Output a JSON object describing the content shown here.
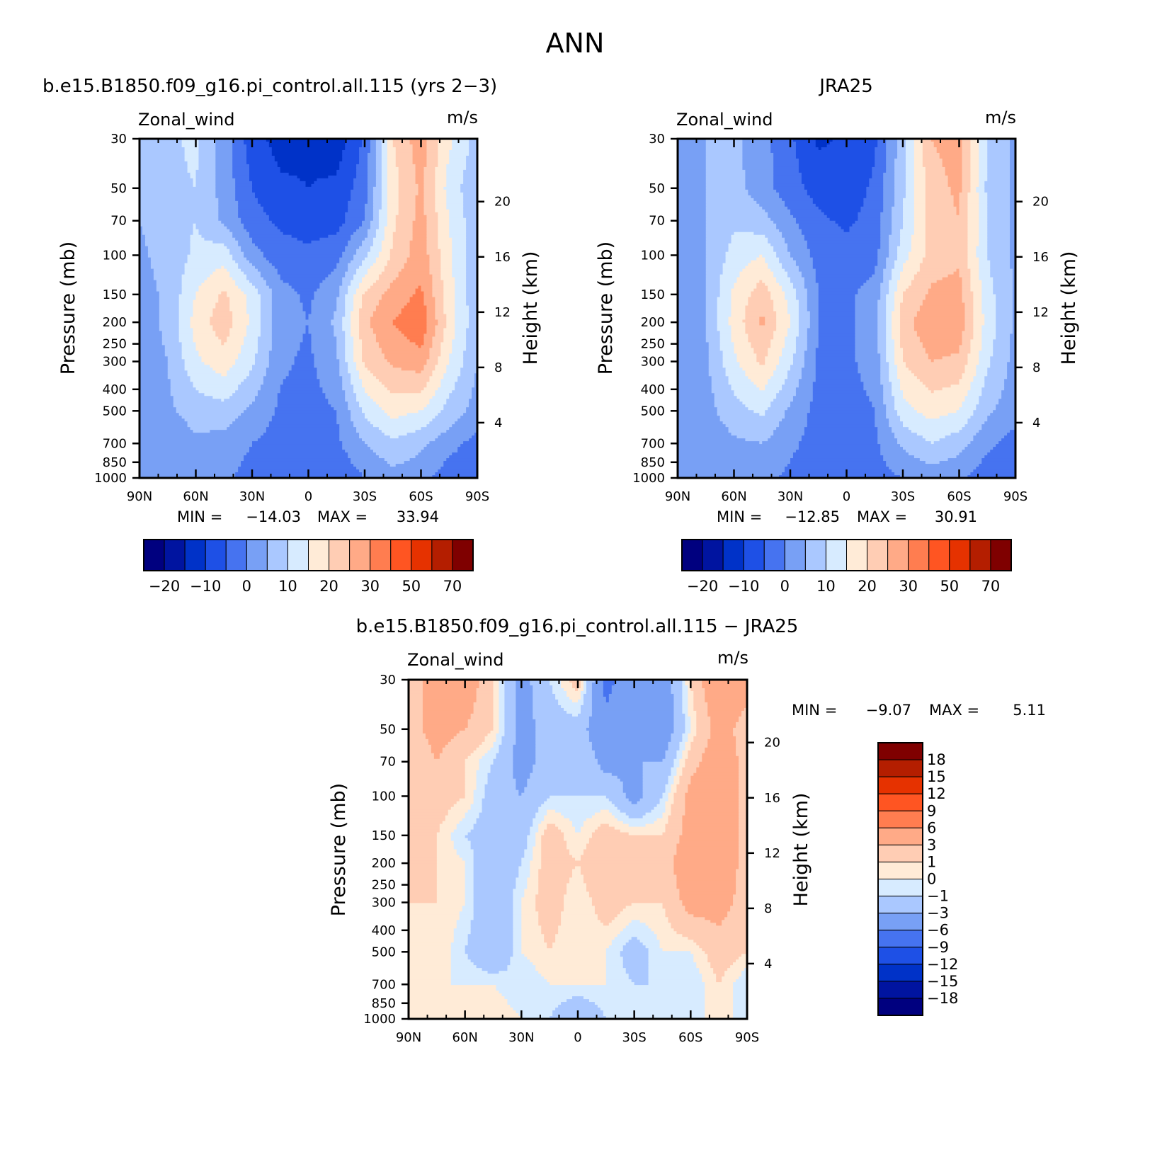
{
  "figure": {
    "title": "ANN"
  },
  "chart_data": [
    {
      "type": "heatmap",
      "title": "b.e15.B1850.f09_g16.pi_control.all.115 (yrs 2-3)",
      "subtitle_left": "Zonal_wind",
      "subtitle_right": "m/s",
      "ylabel": "Pressure (mb)",
      "ylabel_right": "Height (km)",
      "x_ticks": [
        "90N",
        "60N",
        "30N",
        "0",
        "30S",
        "60S",
        "90S"
      ],
      "y_ticks": [
        "30",
        "50",
        "70",
        "100",
        "150",
        "200",
        "250",
        "300",
        "400",
        "500",
        "700",
        "850",
        "1000"
      ],
      "height_ticks": [
        "20",
        "16",
        "12",
        "8",
        "4"
      ],
      "stats": {
        "min_label": "MIN =",
        "min": "-14.03",
        "max_label": "MAX =",
        "max": "33.94"
      },
      "colorbar_labels": [
        "-20",
        "-10",
        "0",
        "10",
        "20",
        "30",
        "50",
        "70"
      ],
      "contour_levels": [
        -25,
        -20,
        -15,
        -10,
        -5,
        0,
        5,
        10,
        15,
        20,
        25,
        30,
        40,
        50,
        60,
        70,
        80
      ],
      "grid": {
        "lat": [
          90,
          75,
          60,
          45,
          30,
          15,
          0,
          -15,
          -30,
          -45,
          -60,
          -75,
          -90
        ],
        "pressure": [
          30,
          50,
          70,
          100,
          150,
          200,
          300,
          500,
          700,
          1000
        ],
        "values": [
          [
            6,
            9,
            11,
            3,
            -8,
            -12,
            -11,
            -13,
            -4,
            20,
            28,
            16,
            8
          ],
          [
            6,
            9,
            10,
            3,
            -5,
            -9,
            -10,
            -9,
            -2,
            18,
            26,
            13,
            6
          ],
          [
            5,
            8,
            10,
            4,
            -3,
            -6,
            -7,
            -7,
            0,
            19,
            27,
            15,
            6
          ],
          [
            4,
            7,
            11,
            13,
            2,
            -3,
            -4,
            -2,
            9,
            21,
            28,
            16,
            6
          ],
          [
            3,
            6,
            15,
            21,
            13,
            2,
            -1,
            4,
            21,
            27,
            31,
            17,
            6
          ],
          [
            3,
            6,
            17,
            23,
            14,
            2,
            0,
            6,
            24,
            30,
            34,
            18,
            6
          ],
          [
            2,
            5,
            14,
            18,
            11,
            1,
            -1,
            4,
            21,
            26,
            28,
            15,
            5
          ],
          [
            1,
            4,
            7,
            8,
            4,
            -1,
            -2,
            0,
            11,
            17,
            15,
            8,
            3
          ],
          [
            1,
            2,
            4,
            3,
            0,
            -2,
            -2,
            -1,
            5,
            9,
            6,
            2,
            -2
          ],
          [
            0,
            1,
            2,
            1,
            -2,
            -5,
            -3,
            -4,
            0,
            3,
            2,
            -3,
            -5
          ]
        ]
      }
    },
    {
      "type": "heatmap",
      "title": "JRA25",
      "subtitle_left": "Zonal_wind",
      "subtitle_right": "m/s",
      "ylabel": "Pressure (mb)",
      "ylabel_right": "Height (km)",
      "x_ticks": [
        "90N",
        "60N",
        "30N",
        "0",
        "30S",
        "60S",
        "90S"
      ],
      "y_ticks": [
        "30",
        "50",
        "70",
        "100",
        "150",
        "200",
        "250",
        "300",
        "400",
        "500",
        "700",
        "850",
        "1000"
      ],
      "height_ticks": [
        "20",
        "16",
        "12",
        "8",
        "4"
      ],
      "stats": {
        "min_label": "MIN =",
        "min": "-12.85",
        "max_label": "MAX =",
        "max": "30.91"
      },
      "colorbar_labels": [
        "-20",
        "-10",
        "0",
        "10",
        "20",
        "30",
        "50",
        "70"
      ],
      "contour_levels": [
        -25,
        -20,
        -15,
        -10,
        -5,
        0,
        5,
        10,
        15,
        20,
        25,
        30,
        40,
        50,
        60,
        70,
        80
      ],
      "grid": {
        "lat": [
          90,
          75,
          60,
          45,
          30,
          15,
          0,
          -15,
          -30,
          -45,
          -60,
          -75,
          -90
        ],
        "pressure": [
          30,
          50,
          70,
          100,
          150,
          200,
          300,
          500,
          700,
          1000
        ],
        "values": [
          [
            4,
            5,
            6,
            2,
            -4,
            -11,
            -9,
            -6,
            8,
            25,
            27,
            10,
            4
          ],
          [
            4,
            5,
            7,
            2,
            -3,
            -7,
            -8,
            -4,
            9,
            23,
            26,
            9,
            4
          ],
          [
            4,
            5,
            9,
            7,
            1,
            -4,
            -6,
            -3,
            10,
            22,
            25,
            10,
            4
          ],
          [
            3,
            5,
            12,
            15,
            5,
            -2,
            -3,
            -2,
            13,
            22,
            24,
            10,
            4
          ],
          [
            2,
            5,
            16,
            23,
            13,
            0,
            -1,
            2,
            20,
            26,
            27,
            12,
            4
          ],
          [
            2,
            5,
            17,
            26,
            15,
            0,
            -1,
            3,
            23,
            29,
            28,
            13,
            4
          ],
          [
            1,
            4,
            14,
            21,
            11,
            -1,
            -1,
            2,
            20,
            25,
            24,
            11,
            3
          ],
          [
            1,
            3,
            8,
            11,
            4,
            -2,
            -2,
            0,
            13,
            17,
            15,
            6,
            2
          ],
          [
            0,
            2,
            4,
            5,
            1,
            -2,
            -2,
            -1,
            6,
            10,
            7,
            1,
            -2
          ],
          [
            0,
            1,
            2,
            1,
            -1,
            -3,
            -3,
            -2,
            0,
            2,
            1,
            -3,
            -2
          ]
        ]
      }
    },
    {
      "type": "heatmap",
      "title": "b.e15.B1850.f09_g16.pi_control.all.115 - JRA25",
      "subtitle_left": "Zonal_wind",
      "subtitle_right": "m/s",
      "ylabel": "Pressure (mb)",
      "ylabel_right": "Height (km)",
      "x_ticks": [
        "90N",
        "60N",
        "30N",
        "0",
        "30S",
        "60S",
        "90S"
      ],
      "y_ticks": [
        "30",
        "50",
        "70",
        "100",
        "150",
        "200",
        "250",
        "300",
        "400",
        "500",
        "700",
        "850",
        "1000"
      ],
      "height_ticks": [
        "20",
        "16",
        "12",
        "8",
        "4"
      ],
      "stats": {
        "min_label": "MIN =",
        "min": "-9.07",
        "max_label": "MAX =",
        "max": "5.11"
      },
      "colorbar_labels": [
        "18",
        "15",
        "12",
        "9",
        "6",
        "3",
        "1",
        "0",
        "-1",
        "-3",
        "-6",
        "-9",
        "-12",
        "-15",
        "-18"
      ],
      "contour_levels": [
        -21,
        -18,
        -15,
        -12,
        -9,
        -6,
        -3,
        -1,
        0,
        1,
        3,
        6,
        9,
        12,
        15,
        18,
        21
      ],
      "grid": {
        "lat": [
          90,
          75,
          60,
          45,
          30,
          15,
          0,
          -15,
          -30,
          -45,
          -60,
          -75,
          -90
        ],
        "pressure": [
          30,
          50,
          70,
          100,
          150,
          200,
          300,
          500,
          700,
          1000
        ],
        "values": [
          [
            2,
            4,
            5,
            1,
            -4,
            -1,
            2,
            -7,
            -4,
            -5,
            1,
            6,
            4
          ],
          [
            2,
            4,
            3,
            1,
            -4,
            -2,
            -2,
            -5,
            -3,
            -5,
            0,
            4,
            2
          ],
          [
            1,
            3,
            1,
            -1,
            -4,
            -2,
            -1,
            -4,
            -3,
            -3,
            2,
            5,
            2
          ],
          [
            1,
            2,
            1,
            -2,
            -3,
            -1,
            -1,
            -1,
            -4,
            -1,
            4,
            6,
            2
          ],
          [
            1,
            1,
            -1,
            -2,
            -2,
            2,
            0,
            2,
            1,
            1,
            4,
            5,
            2
          ],
          [
            1,
            1,
            0,
            -3,
            -1,
            2,
            1,
            3,
            1,
            1,
            6,
            5,
            2
          ],
          [
            1,
            1,
            0,
            -3,
            0,
            2,
            0,
            2,
            1,
            1,
            4,
            4,
            2
          ],
          [
            0,
            1,
            -1,
            -3,
            0,
            1,
            0,
            0,
            -2,
            0,
            0,
            2,
            1
          ],
          [
            1,
            0,
            0,
            0,
            -1,
            0,
            0,
            0,
            -1,
            -1,
            -1,
            1,
            -1
          ],
          [
            0,
            0,
            0,
            1,
            0,
            -1,
            -3,
            -1,
            0,
            -1,
            0,
            0,
            0
          ]
        ]
      }
    }
  ],
  "colors": {
    "abs_palette": [
      "#00007F",
      "#0014A0",
      "#0032C8",
      "#1E50E6",
      "#4673F0",
      "#78A0F5",
      "#AAC8FF",
      "#D7EBFF",
      "#FFEBD7",
      "#FFCDB4",
      "#FFAA87",
      "#FF7D50",
      "#FF5522",
      "#E63200",
      "#B41E00",
      "#7F0000"
    ],
    "diff_palette": [
      "#00007F",
      "#0014A0",
      "#0032C8",
      "#1E50E6",
      "#4673F0",
      "#78A0F5",
      "#AAC8FF",
      "#D7EBFF",
      "#FFEBD7",
      "#FFCDB4",
      "#FFAA87",
      "#FF7D50",
      "#FF5522",
      "#E63200",
      "#B41E00",
      "#7F0000"
    ]
  }
}
